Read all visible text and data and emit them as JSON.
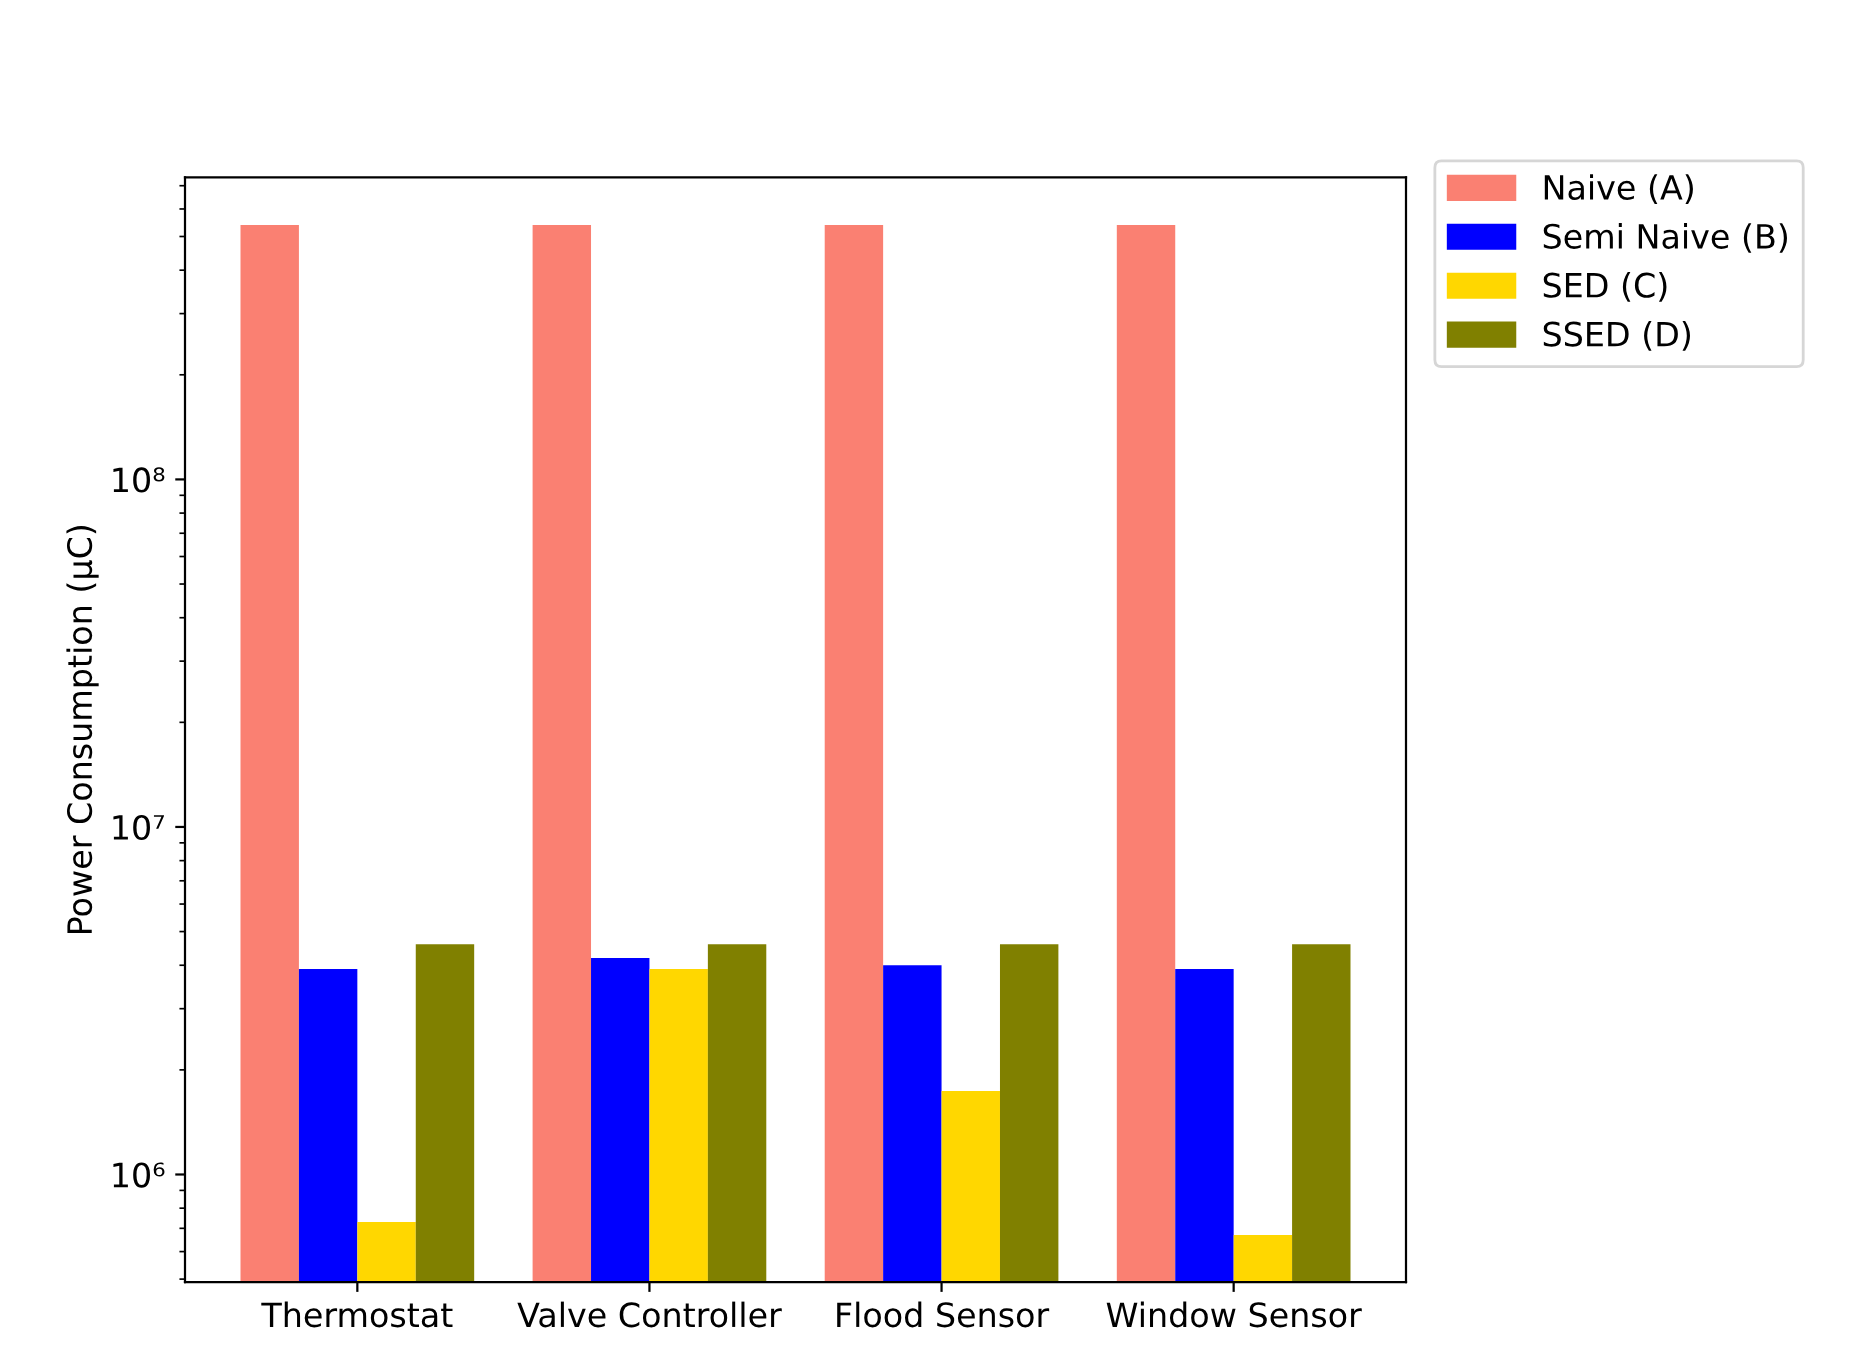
{
  "chart_data": {
    "type": "bar",
    "ylabel": "Power Consumption (μC)",
    "categories": [
      "Thermostat",
      "Valve Controller",
      "Flood Sensor",
      "Window Sensor"
    ],
    "series": [
      {
        "name": "Naive (A)",
        "color": "#fa8072",
        "values": [
          540000000,
          540000000,
          540000000,
          540000000
        ]
      },
      {
        "name": "Semi Naive (B)",
        "color": "#0000ff",
        "values": [
          3900000,
          4200000,
          4000000,
          3900000
        ]
      },
      {
        "name": "SED (C)",
        "color": "#ffd700",
        "values": [
          730000,
          3900000,
          1740000,
          670000
        ]
      },
      {
        "name": "SSED (D)",
        "color": "#808000",
        "values": [
          4600000,
          4600000,
          4600000,
          4600000
        ]
      }
    ],
    "log": "y",
    "ylim": [
      490000,
      740000000
    ],
    "yticks": [
      {
        "value": 1000000,
        "label": "10⁶"
      },
      {
        "value": 10000000,
        "label": "10⁷"
      },
      {
        "value": 100000000,
        "label": "10⁸"
      }
    ],
    "legend": "top right",
    "grid": false
  }
}
